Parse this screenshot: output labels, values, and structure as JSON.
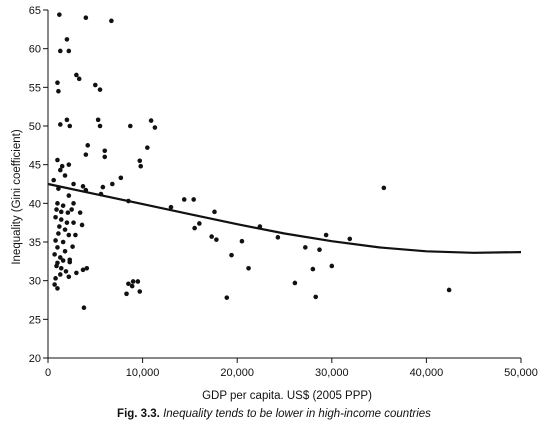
{
  "caption": {
    "figure_number": "Fig. 3.3.",
    "text": "Inequality tends to be lower in high-income countries"
  },
  "chart_data": {
    "type": "scatter",
    "xlabel": "GDP per capita. US$ (2005 PPP)",
    "ylabel": "Inequality (Gini coefficient)",
    "xlim": [
      0,
      50000
    ],
    "ylim": [
      20,
      65
    ],
    "x_ticks": [
      0,
      10000,
      20000,
      30000,
      40000,
      50000
    ],
    "x_tick_labels": [
      "0",
      "10,000",
      "20,000",
      "30,000",
      "40,000",
      "50,000"
    ],
    "y_ticks": [
      20,
      25,
      30,
      35,
      40,
      45,
      50,
      55,
      60,
      65
    ],
    "y_tick_labels": [
      "20",
      "25",
      "30",
      "35",
      "40",
      "45",
      "50",
      "55",
      "60",
      "65"
    ],
    "grid": false,
    "colors": {
      "marks": "#111111",
      "background": "#ffffff"
    },
    "series": [
      {
        "type": "scatter",
        "points": [
          [
            1200,
            64.4
          ],
          [
            4000,
            64.0
          ],
          [
            6700,
            63.6
          ],
          [
            2000,
            61.2
          ],
          [
            1300,
            59.7
          ],
          [
            2200,
            59.7
          ],
          [
            3000,
            56.6
          ],
          [
            3300,
            56.1
          ],
          [
            1000,
            55.6
          ],
          [
            1100,
            54.5
          ],
          [
            5000,
            55.3
          ],
          [
            5500,
            54.7
          ],
          [
            1300,
            50.2
          ],
          [
            2000,
            50.8
          ],
          [
            2300,
            50.0
          ],
          [
            5300,
            50.8
          ],
          [
            5500,
            50.0
          ],
          [
            8700,
            50.0
          ],
          [
            10900,
            50.7
          ],
          [
            11300,
            49.8
          ],
          [
            4200,
            47.5
          ],
          [
            4000,
            46.3
          ],
          [
            6000,
            46.8
          ],
          [
            6000,
            46.0
          ],
          [
            10500,
            47.2
          ],
          [
            9700,
            45.5
          ],
          [
            9800,
            44.8
          ],
          [
            1000,
            45.6
          ],
          [
            1500,
            44.8
          ],
          [
            2200,
            45.0
          ],
          [
            1300,
            44.3
          ],
          [
            1800,
            43.6
          ],
          [
            600,
            43.0
          ],
          [
            2700,
            42.5
          ],
          [
            3700,
            42.2
          ],
          [
            5800,
            42.1
          ],
          [
            6800,
            42.5
          ],
          [
            7700,
            43.3
          ],
          [
            1100,
            41.9
          ],
          [
            2200,
            41.0
          ],
          [
            4000,
            41.7
          ],
          [
            5600,
            41.2
          ],
          [
            8500,
            40.3
          ],
          [
            2700,
            40.0
          ],
          [
            1000,
            40.0
          ],
          [
            1600,
            39.7
          ],
          [
            2500,
            39.2
          ],
          [
            900,
            39.2
          ],
          [
            1400,
            38.9
          ],
          [
            2100,
            38.8
          ],
          [
            3400,
            38.8
          ],
          [
            800,
            38.2
          ],
          [
            1400,
            37.9
          ],
          [
            2000,
            37.5
          ],
          [
            2700,
            37.5
          ],
          [
            1200,
            37.0
          ],
          [
            1800,
            36.6
          ],
          [
            3600,
            37.2
          ],
          [
            1100,
            36.1
          ],
          [
            2200,
            35.9
          ],
          [
            2900,
            35.9
          ],
          [
            800,
            35.2
          ],
          [
            1600,
            35.0
          ],
          [
            2600,
            34.4
          ],
          [
            1000,
            34.3
          ],
          [
            1800,
            33.8
          ],
          [
            700,
            33.4
          ],
          [
            1300,
            33.0
          ],
          [
            2300,
            32.4
          ],
          [
            1000,
            32.3
          ],
          [
            1600,
            32.6
          ],
          [
            2300,
            32.7
          ],
          [
            900,
            31.9
          ],
          [
            1400,
            31.6
          ],
          [
            1900,
            31.2
          ],
          [
            3000,
            31.0
          ],
          [
            1300,
            30.8
          ],
          [
            2200,
            30.5
          ],
          [
            800,
            30.3
          ],
          [
            3700,
            31.4
          ],
          [
            4100,
            31.6
          ],
          [
            700,
            29.5
          ],
          [
            1000,
            29.0
          ],
          [
            9000,
            29.9
          ],
          [
            8500,
            29.6
          ],
          [
            8900,
            29.3
          ],
          [
            9500,
            29.9
          ],
          [
            8300,
            28.3
          ],
          [
            9700,
            28.6
          ],
          [
            3800,
            26.5
          ],
          [
            13000,
            39.5
          ],
          [
            14400,
            40.5
          ],
          [
            15400,
            40.5
          ],
          [
            16000,
            37.4
          ],
          [
            15500,
            36.8
          ],
          [
            17600,
            38.9
          ],
          [
            17300,
            35.7
          ],
          [
            17800,
            35.3
          ],
          [
            19400,
            33.3
          ],
          [
            20500,
            35.1
          ],
          [
            21200,
            31.6
          ],
          [
            22400,
            37.0
          ],
          [
            24300,
            35.6
          ],
          [
            26100,
            29.7
          ],
          [
            27200,
            34.3
          ],
          [
            28000,
            31.5
          ],
          [
            28700,
            34.0
          ],
          [
            29400,
            35.9
          ],
          [
            30000,
            31.9
          ],
          [
            31900,
            35.4
          ],
          [
            35500,
            42.0
          ],
          [
            18900,
            27.8
          ],
          [
            28300,
            27.9
          ],
          [
            42400,
            28.8
          ]
        ]
      },
      {
        "type": "line",
        "name": "",
        "x": [
          0,
          5000,
          10000,
          15000,
          20000,
          25000,
          30000,
          35000,
          40000,
          45000,
          50000
        ],
        "y": [
          42.5,
          41.2,
          39.9,
          38.6,
          37.3,
          36.1,
          35.1,
          34.3,
          33.8,
          33.6,
          33.7
        ]
      }
    ]
  }
}
